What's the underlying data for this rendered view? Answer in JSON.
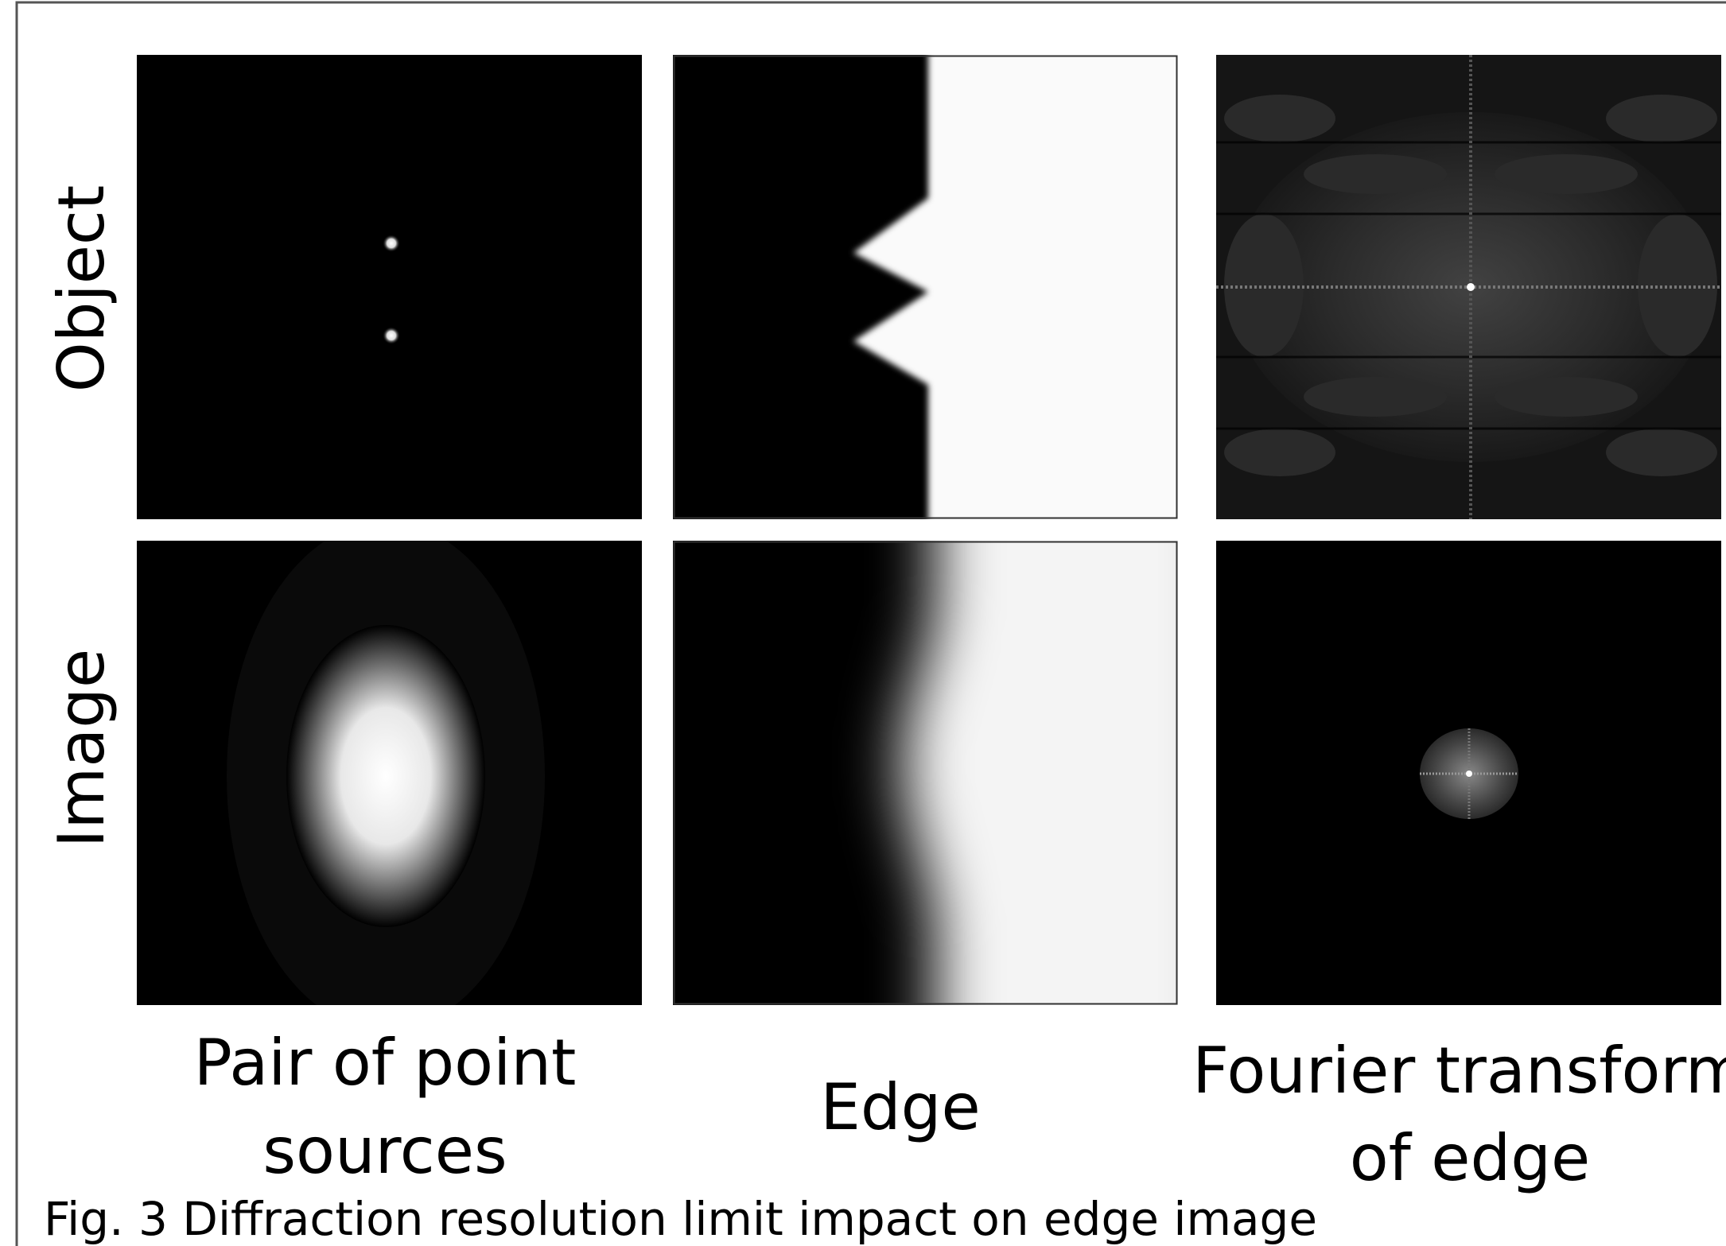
{
  "row_labels": [
    "Object",
    "Image"
  ],
  "columns": [
    {
      "lines": [
        "Pair of point",
        "sources"
      ]
    },
    {
      "lines": [
        "Edge"
      ]
    },
    {
      "lines": [
        "Fourier transform",
        "of edge"
      ]
    }
  ],
  "caption": "Fig. 3 Diffraction resolution limit impact on edge image"
}
